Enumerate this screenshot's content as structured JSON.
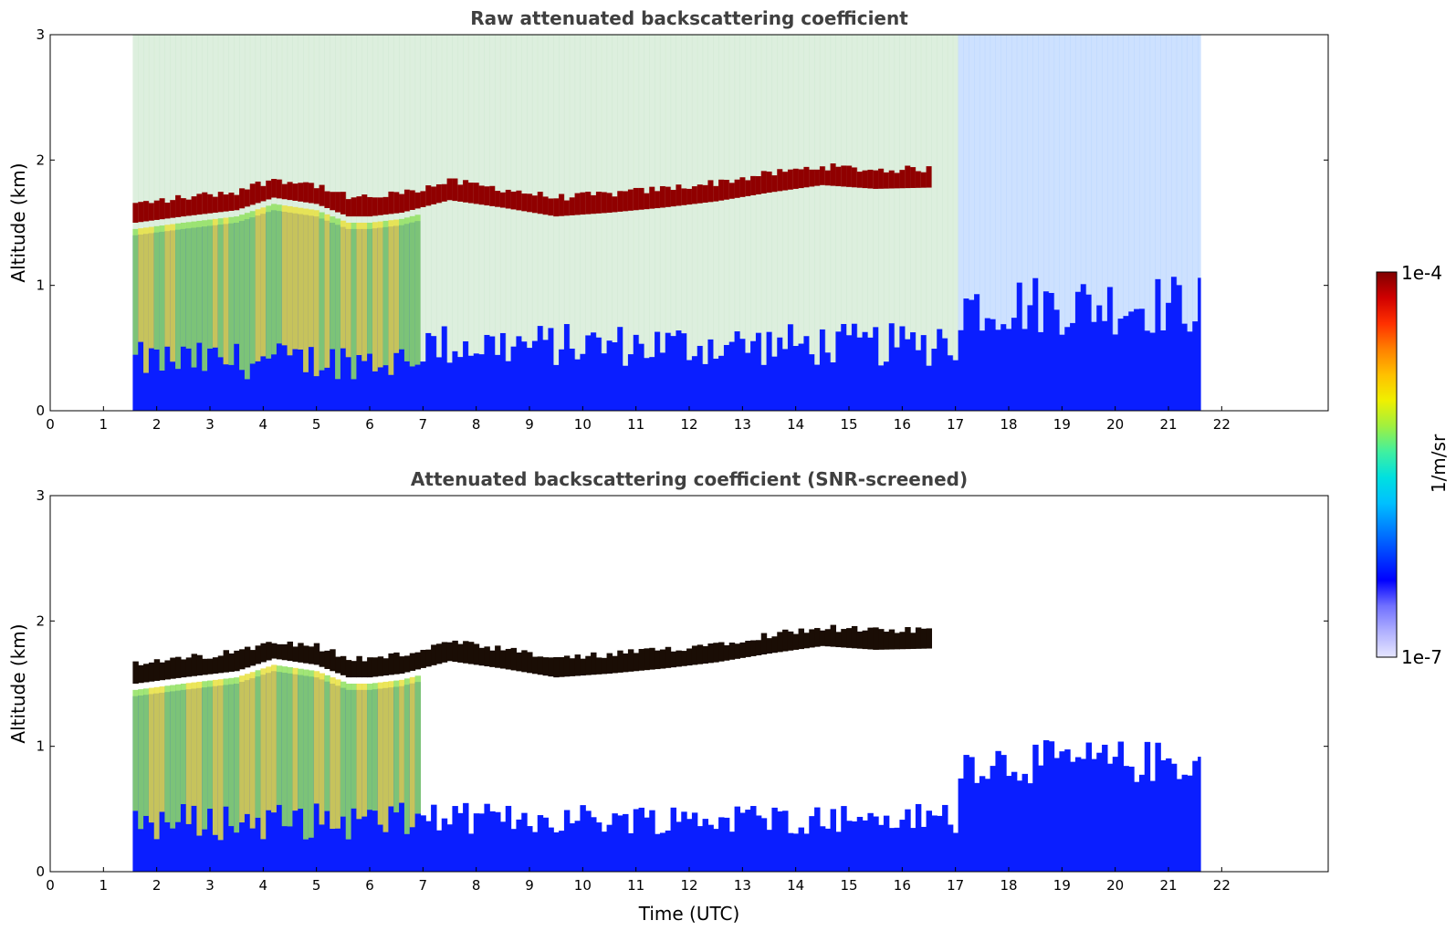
{
  "chart_data": [
    {
      "type": "heatmap",
      "title": "Raw attenuated backscattering coefficient",
      "ylabel": "Altitude (km)",
      "xlabel": "",
      "xlim": [
        0,
        24
      ],
      "ylim": [
        0,
        3
      ],
      "x_ticks": [
        "0",
        "1",
        "2",
        "3",
        "4",
        "5",
        "6",
        "7",
        "8",
        "9",
        "10",
        "11",
        "12",
        "13",
        "14",
        "15",
        "16",
        "17",
        "18",
        "19",
        "20",
        "21",
        "22"
      ],
      "y_ticks": [
        "0",
        "1",
        "2",
        "3"
      ],
      "data_extent_hours": [
        1.55,
        21.6
      ],
      "cloud_base_km": [
        [
          1.6,
          1.5
        ],
        [
          2.5,
          1.55
        ],
        [
          3.5,
          1.6
        ],
        [
          4.2,
          1.7
        ],
        [
          5.0,
          1.65
        ],
        [
          5.6,
          1.55
        ],
        [
          6.0,
          1.55
        ],
        [
          6.6,
          1.58
        ],
        [
          7.5,
          1.68
        ],
        [
          8.5,
          1.62
        ],
        [
          9.5,
          1.55
        ],
        [
          10.5,
          1.58
        ],
        [
          11.5,
          1.62
        ],
        [
          12.5,
          1.67
        ],
        [
          13.5,
          1.74
        ],
        [
          14.5,
          1.8
        ],
        [
          15.5,
          1.77
        ],
        [
          16.5,
          1.78
        ]
      ],
      "screened": false
    },
    {
      "type": "heatmap",
      "title": "Attenuated backscattering coefficient (SNR-screened)",
      "ylabel": "Altitude (km)",
      "xlabel": "Time (UTC)",
      "xlim": [
        0,
        24
      ],
      "ylim": [
        0,
        3
      ],
      "x_ticks": [
        "0",
        "1",
        "2",
        "3",
        "4",
        "5",
        "6",
        "7",
        "8",
        "9",
        "10",
        "11",
        "12",
        "13",
        "14",
        "15",
        "16",
        "17",
        "18",
        "19",
        "20",
        "21",
        "22"
      ],
      "y_ticks": [
        "0",
        "1",
        "2",
        "3"
      ],
      "data_extent_hours": [
        1.55,
        21.6
      ],
      "cloud_base_km": [
        [
          1.6,
          1.5
        ],
        [
          2.5,
          1.55
        ],
        [
          3.5,
          1.6
        ],
        [
          4.2,
          1.7
        ],
        [
          5.0,
          1.65
        ],
        [
          5.6,
          1.55
        ],
        [
          6.0,
          1.55
        ],
        [
          6.6,
          1.58
        ],
        [
          7.5,
          1.68
        ],
        [
          8.5,
          1.62
        ],
        [
          9.5,
          1.55
        ],
        [
          10.5,
          1.58
        ],
        [
          11.5,
          1.62
        ],
        [
          12.5,
          1.67
        ],
        [
          13.5,
          1.74
        ],
        [
          14.5,
          1.8
        ],
        [
          15.5,
          1.77
        ],
        [
          16.5,
          1.78
        ]
      ],
      "screened": true
    }
  ],
  "colorbar": {
    "max_label": "1e-4",
    "min_label": "1e-7",
    "units": "1/m/sr",
    "colors": [
      "#e6e6ff",
      "#b0b0ff",
      "#7070ff",
      "#0000ff",
      "#0040ff",
      "#0080ff",
      "#00c0ff",
      "#00e0e0",
      "#40f0a0",
      "#a0f040",
      "#f0f000",
      "#ffc000",
      "#ff8000",
      "#ff3000",
      "#d00000",
      "#800000"
    ]
  }
}
